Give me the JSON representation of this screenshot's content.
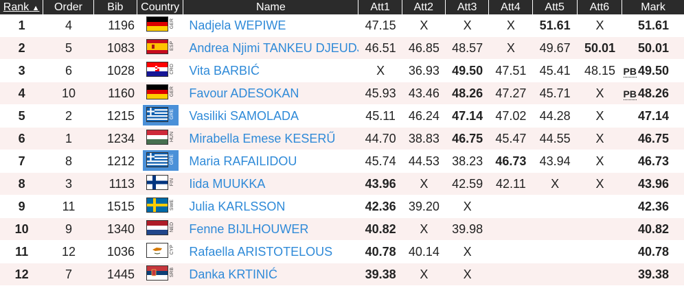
{
  "headers": {
    "rank": "Rank",
    "sort_arrow": "▲",
    "order": "Order",
    "bib": "Bib",
    "country": "Country",
    "name": "Name",
    "att1": "Att1",
    "att2": "Att2",
    "att3": "Att3",
    "att4": "Att4",
    "att5": "Att5",
    "att6": "Att6",
    "mark": "Mark"
  },
  "rows": [
    {
      "rank": "1",
      "order": "4",
      "bib": "1196",
      "country": "GER",
      "flag": "ger",
      "name": "Nadjela WEPIWE",
      "att": [
        "47.15",
        "X",
        "X",
        "X",
        "51.61",
        "X"
      ],
      "bold": [
        false,
        false,
        false,
        false,
        true,
        false
      ],
      "mark": "51.61",
      "pb": ""
    },
    {
      "rank": "2",
      "order": "5",
      "bib": "1083",
      "country": "ESP",
      "flag": "esp",
      "name": "Andrea Njimi TANKEU DJEUDJI",
      "att": [
        "46.51",
        "46.85",
        "48.57",
        "X",
        "49.67",
        "50.01"
      ],
      "bold": [
        false,
        false,
        false,
        false,
        false,
        true
      ],
      "mark": "50.01",
      "pb": ""
    },
    {
      "rank": "3",
      "order": "6",
      "bib": "1028",
      "country": "CRO",
      "flag": "cro",
      "name": "Vita BARBIĆ",
      "att": [
        "X",
        "36.93",
        "49.50",
        "47.51",
        "45.41",
        "48.15"
      ],
      "bold": [
        false,
        false,
        true,
        false,
        false,
        false
      ],
      "mark": "49.50",
      "pb": "PB"
    },
    {
      "rank": "4",
      "order": "10",
      "bib": "1160",
      "country": "GER",
      "flag": "ger",
      "name": "Favour ADESOKAN",
      "att": [
        "45.93",
        "43.46",
        "48.26",
        "47.27",
        "45.71",
        "X"
      ],
      "bold": [
        false,
        false,
        true,
        false,
        false,
        false
      ],
      "mark": "48.26",
      "pb": "PB"
    },
    {
      "rank": "5",
      "order": "2",
      "bib": "1215",
      "country": "GRE",
      "flag": "gre",
      "name": "Vasiliki SAMOLADA",
      "att": [
        "45.11",
        "46.24",
        "47.14",
        "47.02",
        "44.28",
        "X"
      ],
      "bold": [
        false,
        false,
        true,
        false,
        false,
        false
      ],
      "mark": "47.14",
      "pb": ""
    },
    {
      "rank": "6",
      "order": "1",
      "bib": "1234",
      "country": "HUN",
      "flag": "hun",
      "name": "Mirabella Emese KESERŰ",
      "att": [
        "44.70",
        "38.83",
        "46.75",
        "45.47",
        "44.55",
        "X"
      ],
      "bold": [
        false,
        false,
        true,
        false,
        false,
        false
      ],
      "mark": "46.75",
      "pb": ""
    },
    {
      "rank": "7",
      "order": "8",
      "bib": "1212",
      "country": "GRE",
      "flag": "gre",
      "name": "Maria RAFAILIDOU",
      "att": [
        "45.74",
        "44.53",
        "38.23",
        "46.73",
        "43.94",
        "X"
      ],
      "bold": [
        false,
        false,
        false,
        true,
        false,
        false
      ],
      "mark": "46.73",
      "pb": ""
    },
    {
      "rank": "8",
      "order": "3",
      "bib": "1113",
      "country": "FIN",
      "flag": "fin",
      "name": "Iida MUUKKA",
      "att": [
        "43.96",
        "X",
        "42.59",
        "42.11",
        "X",
        "X"
      ],
      "bold": [
        true,
        false,
        false,
        false,
        false,
        false
      ],
      "mark": "43.96",
      "pb": ""
    },
    {
      "rank": "9",
      "order": "11",
      "bib": "1515",
      "country": "SWE",
      "flag": "swe",
      "name": "Julia KARLSSON",
      "att": [
        "42.36",
        "39.20",
        "X",
        "",
        "",
        ""
      ],
      "bold": [
        true,
        false,
        false,
        false,
        false,
        false
      ],
      "mark": "42.36",
      "pb": ""
    },
    {
      "rank": "10",
      "order": "9",
      "bib": "1340",
      "country": "NED",
      "flag": "ned",
      "name": "Fenne BIJLHOUWER",
      "att": [
        "40.82",
        "X",
        "39.98",
        "",
        "",
        ""
      ],
      "bold": [
        true,
        false,
        false,
        false,
        false,
        false
      ],
      "mark": "40.82",
      "pb": ""
    },
    {
      "rank": "11",
      "order": "12",
      "bib": "1036",
      "country": "CYP",
      "flag": "cyp",
      "name": "Rafaella ARISTOTELOUS",
      "att": [
        "40.78",
        "40.14",
        "X",
        "",
        "",
        ""
      ],
      "bold": [
        true,
        false,
        false,
        false,
        false,
        false
      ],
      "mark": "40.78",
      "pb": ""
    },
    {
      "rank": "12",
      "order": "7",
      "bib": "1445",
      "country": "SRB",
      "flag": "srb",
      "name": "Danka KRTINIĆ",
      "att": [
        "39.38",
        "X",
        "X",
        "",
        "",
        ""
      ],
      "bold": [
        true,
        false,
        false,
        false,
        false,
        false
      ],
      "mark": "39.38",
      "pb": ""
    }
  ]
}
